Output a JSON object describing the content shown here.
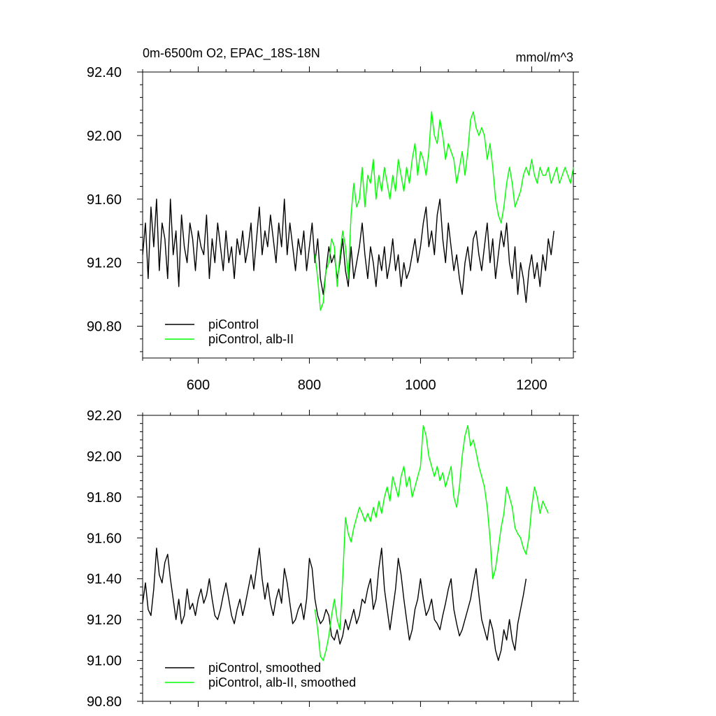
{
  "chart_data": [
    {
      "type": "line",
      "title": "0m-6500m O2, EPAC_18S-18N",
      "units": "mmol/m^3",
      "xlim": [
        500,
        1275
      ],
      "ylim": [
        90.6,
        92.4
      ],
      "xticks": [
        600,
        800,
        1000,
        1200
      ],
      "xtick_labels": [
        "600",
        "800",
        "1000",
        "1200"
      ],
      "yticks": [
        90.8,
        91.2,
        91.6,
        92.0,
        92.4
      ],
      "ytick_labels": [
        "90.80",
        "91.20",
        "91.60",
        "92.00",
        "92.40"
      ],
      "grid": false,
      "legend": "bottom-left",
      "series": [
        {
          "name": "piControl",
          "color": "#000000",
          "x_start": 500,
          "x_step": 5,
          "values": [
            91.25,
            91.45,
            91.1,
            91.55,
            91.3,
            91.6,
            91.15,
            91.45,
            91.35,
            91.1,
            91.6,
            91.25,
            91.4,
            91.05,
            91.5,
            91.3,
            91.2,
            91.45,
            91.35,
            91.15,
            91.4,
            91.3,
            91.25,
            91.5,
            91.1,
            91.35,
            91.2,
            91.45,
            91.3,
            91.15,
            91.4,
            91.2,
            91.3,
            91.1,
            91.35,
            91.25,
            91.4,
            91.2,
            91.3,
            91.45,
            91.15,
            91.35,
            91.55,
            91.25,
            91.4,
            91.3,
            91.5,
            91.35,
            91.2,
            91.45,
            91.3,
            91.6,
            91.25,
            91.45,
            91.3,
            91.15,
            91.35,
            91.25,
            91.4,
            91.15,
            91.3,
            91.45,
            91.2,
            91.35,
            91.1,
            91.0,
            91.15,
            91.3,
            91.2,
            91.25,
            91.1,
            91.2,
            91.35,
            91.15,
            91.05,
            91.3,
            91.1,
            91.2,
            91.3,
            91.45,
            91.25,
            91.1,
            91.3,
            91.2,
            91.05,
            91.25,
            91.15,
            91.3,
            91.1,
            91.2,
            91.35,
            91.15,
            91.25,
            91.05,
            91.2,
            91.1,
            91.15,
            91.25,
            91.35,
            91.2,
            91.3,
            91.45,
            91.55,
            91.3,
            91.4,
            91.25,
            91.5,
            91.6,
            91.35,
            91.2,
            91.45,
            91.3,
            91.15,
            91.25,
            91.1,
            91.0,
            91.2,
            91.3,
            91.15,
            91.35,
            91.4,
            91.25,
            91.15,
            91.3,
            91.45,
            91.2,
            91.35,
            91.1,
            91.25,
            91.4,
            91.3,
            91.45,
            91.2,
            91.1,
            91.3,
            91.0,
            91.2,
            91.1,
            90.95,
            91.15,
            91.25,
            91.1,
            91.2,
            91.05,
            91.25,
            91.15,
            91.35,
            91.25,
            91.4
          ]
        },
        {
          "name": "piControl, alb-II",
          "color": "#00ff00",
          "x_start": 810,
          "x_step": 5,
          "values": [
            91.25,
            91.1,
            90.9,
            90.95,
            91.15,
            91.2,
            91.35,
            91.3,
            91.05,
            91.25,
            91.4,
            91.3,
            91.1,
            91.5,
            91.7,
            91.55,
            91.6,
            91.8,
            91.55,
            91.75,
            91.7,
            91.85,
            91.6,
            91.75,
            91.65,
            91.8,
            91.7,
            91.6,
            91.75,
            91.65,
            91.85,
            91.75,
            91.65,
            91.8,
            91.7,
            91.85,
            91.95,
            91.75,
            91.9,
            91.85,
            91.75,
            91.9,
            92.15,
            92.0,
            91.95,
            92.1,
            92.0,
            91.85,
            91.95,
            91.9,
            91.85,
            91.7,
            91.8,
            91.9,
            91.75,
            91.9,
            92.1,
            92.15,
            92.05,
            92.0,
            92.05,
            92.0,
            91.85,
            91.95,
            91.8,
            91.6,
            91.5,
            91.45,
            91.55,
            91.7,
            91.8,
            91.7,
            91.55,
            91.6,
            91.65,
            91.75,
            91.8,
            91.75,
            91.85,
            91.75,
            91.7,
            91.8,
            91.75,
            91.75,
            91.8,
            91.7,
            91.75,
            91.8,
            91.7,
            91.75,
            91.8,
            91.75,
            91.7,
            91.8
          ]
        }
      ]
    },
    {
      "type": "line",
      "xlim": [
        500,
        1275
      ],
      "ylim": [
        90.8,
        92.2
      ],
      "xticks": [
        600,
        800,
        1000,
        1200
      ],
      "yticks": [
        90.8,
        91.0,
        91.2,
        91.4,
        91.6,
        91.8,
        92.0,
        92.2
      ],
      "ytick_labels": [
        "90.80",
        "91.00",
        "91.20",
        "91.40",
        "91.60",
        "91.80",
        "92.00",
        "92.20"
      ],
      "grid": false,
      "legend": "bottom-left",
      "series": [
        {
          "name": "piControl, smoothed",
          "color": "#000000",
          "x_start": 500,
          "x_step": 5,
          "values": [
            91.28,
            91.38,
            91.25,
            91.22,
            91.35,
            91.55,
            91.42,
            91.38,
            91.48,
            91.52,
            91.4,
            91.3,
            91.2,
            91.3,
            91.18,
            91.22,
            91.35,
            91.25,
            91.28,
            91.22,
            91.3,
            91.35,
            91.28,
            91.32,
            91.4,
            91.3,
            91.22,
            91.2,
            91.25,
            91.32,
            91.38,
            91.3,
            91.22,
            91.18,
            91.25,
            91.3,
            91.22,
            91.28,
            91.35,
            91.42,
            91.35,
            91.45,
            91.55,
            91.4,
            91.3,
            91.38,
            91.28,
            91.22,
            91.3,
            91.35,
            91.28,
            91.45,
            91.38,
            91.28,
            91.18,
            91.2,
            91.25,
            91.28,
            91.2,
            91.3,
            91.5,
            91.45,
            91.3,
            91.22,
            91.18,
            91.2,
            91.25,
            91.22,
            91.12,
            91.1,
            91.15,
            91.08,
            91.12,
            91.2,
            91.15,
            91.2,
            91.25,
            91.18,
            91.22,
            91.3,
            91.28,
            91.35,
            91.4,
            91.25,
            91.3,
            91.45,
            91.55,
            91.35,
            91.25,
            91.15,
            91.25,
            91.35,
            91.5,
            91.42,
            91.3,
            91.2,
            91.1,
            91.15,
            91.25,
            91.3,
            91.4,
            91.3,
            91.22,
            91.25,
            91.3,
            91.2,
            91.18,
            91.15,
            91.22,
            91.28,
            91.35,
            91.4,
            91.25,
            91.18,
            91.12,
            91.15,
            91.2,
            91.25,
            91.3,
            91.38,
            91.45,
            91.32,
            91.2,
            91.15,
            91.1,
            91.2,
            91.15,
            91.05,
            91.0,
            91.05,
            91.15,
            91.1,
            91.2,
            91.1,
            91.05,
            91.18,
            91.25,
            91.32,
            91.4
          ]
        },
        {
          "name": "piControl, alb-II, smoothed",
          "color": "#00ff00",
          "x_start": 810,
          "x_step": 5,
          "values": [
            91.25,
            91.15,
            91.02,
            91.0,
            91.05,
            91.12,
            91.22,
            91.3,
            91.2,
            91.15,
            91.4,
            91.7,
            91.62,
            91.58,
            91.65,
            91.7,
            91.75,
            91.72,
            91.68,
            91.72,
            91.68,
            91.75,
            91.7,
            91.78,
            91.72,
            91.8,
            91.85,
            91.78,
            91.9,
            91.85,
            91.8,
            91.9,
            91.95,
            91.85,
            91.9,
            91.8,
            91.85,
            91.9,
            91.95,
            92.15,
            92.1,
            92.0,
            91.95,
            91.9,
            91.95,
            91.88,
            91.92,
            91.85,
            91.9,
            91.95,
            91.8,
            91.75,
            91.85,
            92.0,
            92.1,
            92.15,
            92.05,
            92.08,
            92.02,
            91.95,
            91.9,
            91.85,
            91.75,
            91.6,
            91.4,
            91.45,
            91.55,
            91.65,
            91.72,
            91.85,
            91.8,
            91.75,
            91.65,
            91.62,
            91.6,
            91.55,
            91.52,
            91.6,
            91.75,
            91.85,
            91.8,
            91.72,
            91.78,
            91.75,
            91.72
          ]
        }
      ]
    }
  ]
}
